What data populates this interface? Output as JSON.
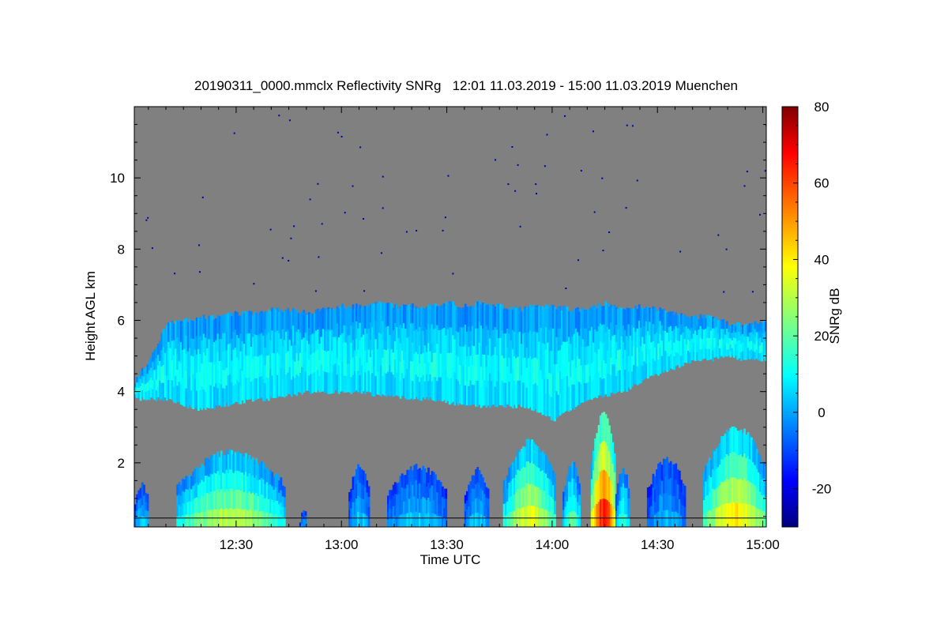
{
  "chart_data": {
    "type": "heatmap",
    "title": "20190311_0000.mmclx Reflectivity SNRg   12:01 11.03.2019 - 15:00 11.03.2019 Muenchen",
    "xlabel": "Time UTC",
    "ylabel": "Height AGL km",
    "colorbar_label": "SNRg dB",
    "x_range_minutes_utc": [
      "12:01",
      "15:00"
    ],
    "xlim": [
      721,
      901
    ],
    "ylim": [
      0.2,
      12.0
    ],
    "clim": [
      -30,
      80
    ],
    "x_ticks": [
      {
        "value": 750,
        "label": "12:30"
      },
      {
        "value": 780,
        "label": "13:00"
      },
      {
        "value": 810,
        "label": "13:30"
      },
      {
        "value": 840,
        "label": "14:00"
      },
      {
        "value": 870,
        "label": "14:30"
      },
      {
        "value": 900,
        "label": "15:00"
      }
    ],
    "y_ticks": [
      {
        "value": 2,
        "label": "2"
      },
      {
        "value": 4,
        "label": "4"
      },
      {
        "value": 6,
        "label": "6"
      },
      {
        "value": 8,
        "label": "8"
      },
      {
        "value": 10,
        "label": "10"
      }
    ],
    "colorbar_ticks": [
      {
        "value": -20,
        "label": "-20"
      },
      {
        "value": 0,
        "label": "0"
      },
      {
        "value": 20,
        "label": "20"
      },
      {
        "value": 40,
        "label": "40"
      },
      {
        "value": 60,
        "label": "60"
      },
      {
        "value": 80,
        "label": "80"
      }
    ],
    "colormap": "jet",
    "no_signal_color": "#808080",
    "layers": [
      {
        "kind": "upper_cloud",
        "times": [
          721,
          725,
          730,
          735,
          740,
          745,
          750,
          755,
          760,
          765,
          770,
          775,
          780,
          785,
          790,
          795,
          800,
          805,
          810,
          815,
          820,
          825,
          830,
          835,
          840,
          845,
          850,
          855,
          860,
          865,
          870,
          875,
          880,
          885,
          890,
          895,
          901
        ],
        "top_km": [
          4.3,
          4.9,
          5.9,
          6.0,
          6.1,
          6.1,
          6.2,
          6.2,
          6.3,
          6.3,
          6.2,
          6.3,
          6.4,
          6.4,
          6.5,
          6.4,
          6.4,
          6.4,
          6.5,
          6.4,
          6.5,
          6.4,
          6.3,
          6.4,
          6.4,
          6.3,
          6.3,
          6.5,
          6.3,
          6.4,
          6.3,
          6.2,
          6.1,
          6.1,
          5.9,
          5.9,
          6.0
        ],
        "base_km": [
          3.8,
          3.8,
          3.8,
          3.6,
          3.5,
          3.6,
          3.7,
          3.8,
          3.8,
          3.9,
          4.0,
          4.0,
          4.0,
          4.0,
          3.9,
          3.9,
          3.8,
          3.8,
          3.7,
          3.6,
          3.6,
          3.6,
          3.6,
          3.5,
          3.2,
          3.5,
          3.8,
          3.9,
          4.0,
          4.3,
          4.5,
          4.7,
          4.9,
          4.9,
          5.0,
          4.9,
          4.9
        ],
        "peak_snr_db": 15
      },
      {
        "kind": "low_precip",
        "cells": [
          {
            "t0": 721,
            "t1": 725,
            "top_km": 1.4,
            "peak_snr_db": 10
          },
          {
            "t0": 733,
            "t1": 764,
            "top_km": 2.3,
            "peak_snr_db": 35
          },
          {
            "t0": 768,
            "t1": 770,
            "top_km": 0.6,
            "peak_snr_db": 2
          },
          {
            "t0": 782,
            "t1": 788,
            "top_km": 1.9,
            "peak_snr_db": 8
          },
          {
            "t0": 793,
            "t1": 810,
            "top_km": 1.9,
            "peak_snr_db": 8
          },
          {
            "t0": 815,
            "t1": 822,
            "top_km": 1.8,
            "peak_snr_db": 8
          },
          {
            "t0": 826,
            "t1": 841,
            "top_km": 2.6,
            "peak_snr_db": 40
          },
          {
            "t0": 843,
            "t1": 848,
            "top_km": 2.0,
            "peak_snr_db": 25
          },
          {
            "t0": 851,
            "t1": 858,
            "top_km": 3.4,
            "peak_snr_db": 70
          },
          {
            "t0": 858,
            "t1": 862,
            "top_km": 1.8,
            "peak_snr_db": 20
          },
          {
            "t0": 867,
            "t1": 878,
            "top_km": 2.1,
            "peak_snr_db": 5
          },
          {
            "t0": 883,
            "t1": 901,
            "top_km": 3.0,
            "peak_snr_db": 45
          }
        ]
      }
    ],
    "ground_line_km": 0.45
  }
}
